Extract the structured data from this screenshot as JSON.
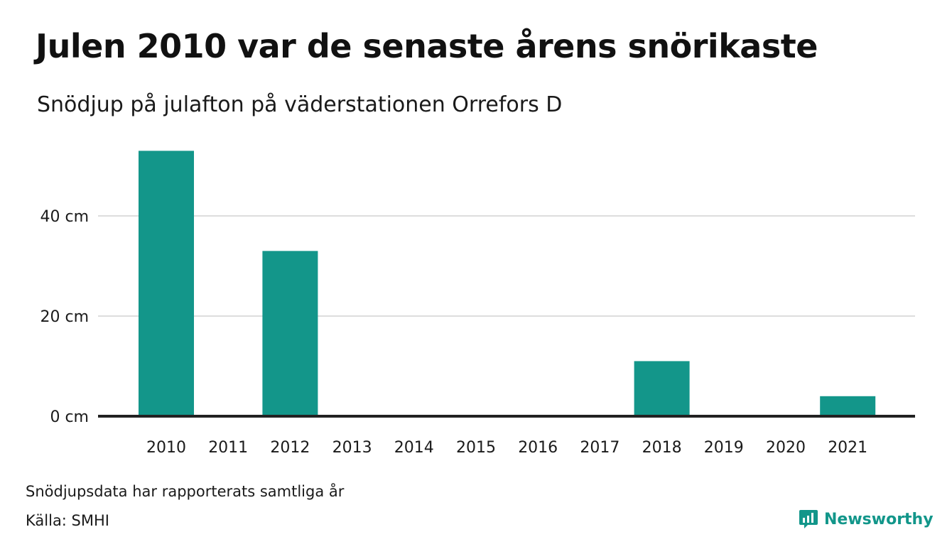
{
  "title": "Julen 2010 var de senaste årens snörikaste",
  "subtitle": "Snödjup på julafton på väderstationen Orrefors D",
  "note": "Snödjupsdata har rapporterats samtliga år",
  "source": "Källa: SMHI",
  "brand": {
    "name": "Newsworthy",
    "icon": "newsworthy-logo-icon"
  },
  "colors": {
    "bar": "#13968a",
    "grid": "#dddddd",
    "baseline": "#222222",
    "brand": "#12968a"
  },
  "chart_data": {
    "type": "bar",
    "categories": [
      "2010",
      "2011",
      "2012",
      "2013",
      "2014",
      "2015",
      "2016",
      "2017",
      "2018",
      "2019",
      "2020",
      "2021"
    ],
    "values": [
      53,
      0,
      33,
      0,
      0,
      0,
      0,
      0,
      11,
      0,
      0,
      4
    ],
    "unit": "cm",
    "ylim": [
      0,
      60
    ],
    "yticks": [
      0,
      20,
      40
    ],
    "ytick_labels": [
      "0 cm",
      "20 cm",
      "40 cm"
    ],
    "grid": true,
    "xlabel": "",
    "ylabel": ""
  }
}
